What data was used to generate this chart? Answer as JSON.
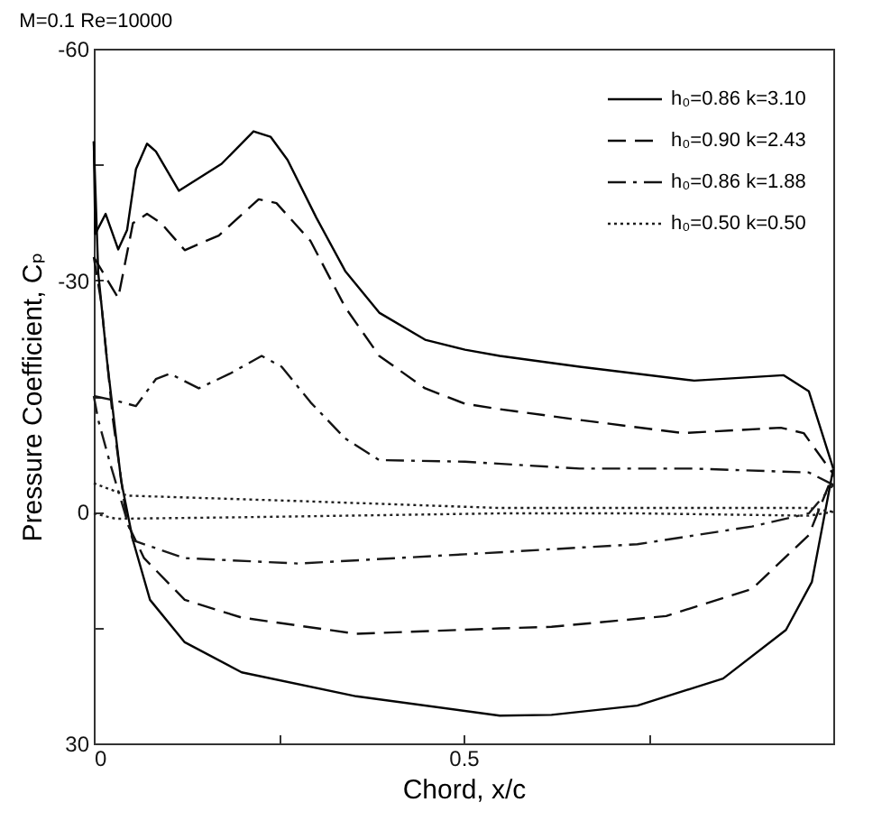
{
  "chart_data": {
    "type": "line",
    "title": "M=0.1   Re=10000",
    "xlabel": "Chord, x/c",
    "ylabel": "Pressure Coefficient, Cₚ",
    "xlim": [
      0,
      1
    ],
    "xticks": [
      0,
      {
        "value": 0.25,
        "label": null
      },
      0.5,
      {
        "value": 0.75,
        "label": null
      }
    ],
    "ylim": [
      30,
      -60
    ],
    "yticks": [
      -60,
      {
        "value": -45,
        "label": null
      },
      -30,
      {
        "value": -15,
        "label": null
      },
      0,
      {
        "value": 15,
        "label": null
      },
      30
    ],
    "grid": false,
    "legend": "top right",
    "marker": "none",
    "series": [
      {
        "name": "h₀=0.86  k=3.10",
        "color": "#000000",
        "line_style": "solid",
        "x": [
          0,
          0.002,
          0.016,
          0.033,
          0.045,
          0.057,
          0.072,
          0.084,
          0.115,
          0.173,
          0.216,
          0.239,
          0.262,
          0.301,
          0.34,
          0.386,
          0.448,
          0.502,
          0.549,
          0.657,
          0.812,
          0.933,
          0.967,
          1.0
        ],
        "values": [
          -48,
          -36,
          -38.6,
          -34,
          -36.5,
          -44.4,
          -47.7,
          -46.7,
          -41.6,
          -45.1,
          -49.3,
          -48.6,
          -45.6,
          -38.1,
          -31.2,
          -25.8,
          -22.3,
          -21,
          -20.2,
          -18.8,
          -17,
          -17.7,
          -15.6,
          -5.6
        ]
      },
      {
        "color": "#050505",
        "line_style": "solid",
        "x": [
          0,
          0.006,
          0.018,
          0.037,
          0.053,
          0.076,
          0.123,
          0.2,
          0.355,
          0.549,
          0.619,
          0.735,
          0.851,
          0.936,
          0.971,
          1.0
        ],
        "values": [
          -48,
          -31,
          -19.5,
          -4,
          3.7,
          11.4,
          16.9,
          20.8,
          23.9,
          26.4,
          26.3,
          25.1,
          21.6,
          15.3,
          9.1,
          -5.6
        ]
      },
      {
        "name": "h₀=0.90  k=2.43",
        "color": "#0a0a0a",
        "line_style": "dashed",
        "x": [
          0,
          0.033,
          0.053,
          0.072,
          0.091,
          0.123,
          0.169,
          0.223,
          0.247,
          0.293,
          0.34,
          0.386,
          0.448,
          0.502,
          0.549,
          0.657,
          0.797,
          0.929,
          0.96,
          1.0
        ],
        "values": [
          -33,
          -27.7,
          -37.4,
          -38.6,
          -37.4,
          -33.9,
          -35.8,
          -40.5,
          -40,
          -35.1,
          -26.5,
          -20.2,
          -16,
          -14,
          -13.3,
          -11.9,
          -10.2,
          -10.9,
          -10.2,
          -4.9
        ]
      },
      {
        "color": "#0f0f0f",
        "line_style": "dashed",
        "x": [
          0,
          0.01,
          0.026,
          0.045,
          0.068,
          0.123,
          0.2,
          0.355,
          0.549,
          0.619,
          0.774,
          0.89,
          0.967,
          1.0
        ],
        "values": [
          -33,
          -27.2,
          -11.9,
          1.4,
          6,
          11.4,
          13.7,
          15.8,
          15.1,
          14.9,
          13.5,
          10,
          3,
          -4.9
        ]
      },
      {
        "name": "h₀=0.86  k=1.88",
        "color": "#141414",
        "line_style": "dashdot",
        "x": [
          0,
          0.03,
          0.057,
          0.084,
          0.103,
          0.142,
          0.184,
          0.227,
          0.254,
          0.293,
          0.34,
          0.386,
          0.502,
          0.657,
          0.812,
          0.967,
          1.0
        ],
        "values": [
          -15,
          -14.4,
          -13.7,
          -17.2,
          -17.9,
          -16,
          -17.9,
          -20.2,
          -18.8,
          -14.2,
          -9.5,
          -6.7,
          -6.5,
          -5.6,
          -5.6,
          -5.1,
          -3.5
        ]
      },
      {
        "color": "#191919",
        "line_style": "dashdot",
        "x": [
          0,
          0.006,
          0.022,
          0.053,
          0.123,
          0.277,
          0.502,
          0.735,
          0.89,
          0.967,
          1.0
        ],
        "values": [
          -15,
          -11.9,
          -6.3,
          3.7,
          6,
          6.7,
          5.5,
          4.2,
          1.9,
          0.2,
          -3.5
        ]
      },
      {
        "name": "h₀=0.50  k=0.50",
        "color": "#1e1e1e",
        "line_style": "dotted",
        "x": [
          0,
          0.045,
          0.277,
          0.549,
          0.967,
          1.0
        ],
        "values": [
          -3.7,
          -2.1,
          -1.4,
          -0.5,
          -0.5,
          0
        ]
      },
      {
        "color": "#232323",
        "line_style": "dotted",
        "x": [
          0,
          0.03,
          0.2,
          0.549,
          0.735,
          0.967,
          1.0
        ],
        "values": [
          0.2,
          0.9,
          0.7,
          0.2,
          0.2,
          0.5,
          0
        ]
      }
    ]
  }
}
